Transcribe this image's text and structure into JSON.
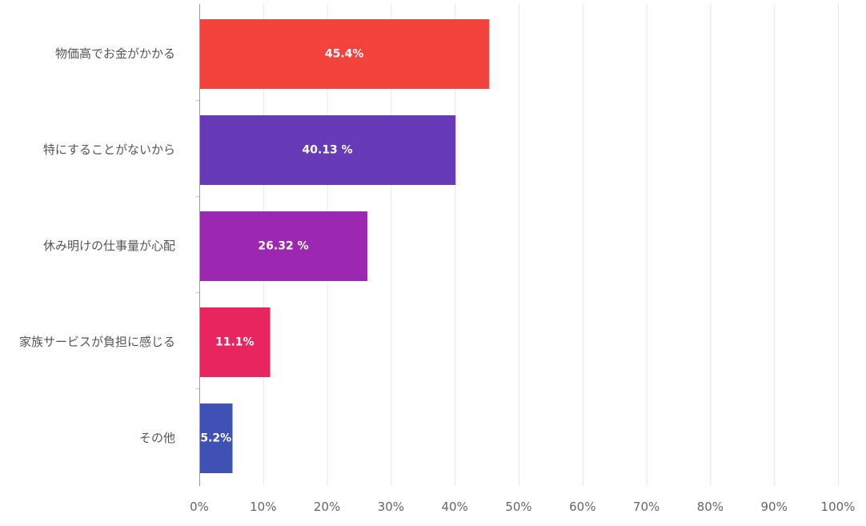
{
  "chart_data": {
    "type": "bar",
    "orientation": "horizontal",
    "categories": [
      "物価高でお金がかかる",
      "特にすることがないから",
      "休み明けの仕事量が心配",
      "家族サービスが負担に感じる",
      "その他"
    ],
    "values": [
      45.4,
      40.13,
      26.32,
      11.1,
      5.2
    ],
    "data_labels": [
      "45.4%",
      "40.13 %",
      "26.32 %",
      "11.1%",
      "5.2%"
    ],
    "colors": [
      "#f2433d",
      "#673ab7",
      "#9c27b0",
      "#e8255f",
      "#3f51b5"
    ],
    "xlim": [
      0,
      100
    ],
    "x_ticks": [
      0,
      10,
      20,
      30,
      40,
      50,
      60,
      70,
      80,
      90,
      100
    ],
    "x_tick_labels": [
      "0%",
      "10%",
      "20%",
      "30%",
      "40%",
      "50%",
      "60%",
      "70%",
      "80%",
      "90%",
      "100%"
    ],
    "grid": true,
    "title": "",
    "xlabel": "",
    "ylabel": ""
  }
}
